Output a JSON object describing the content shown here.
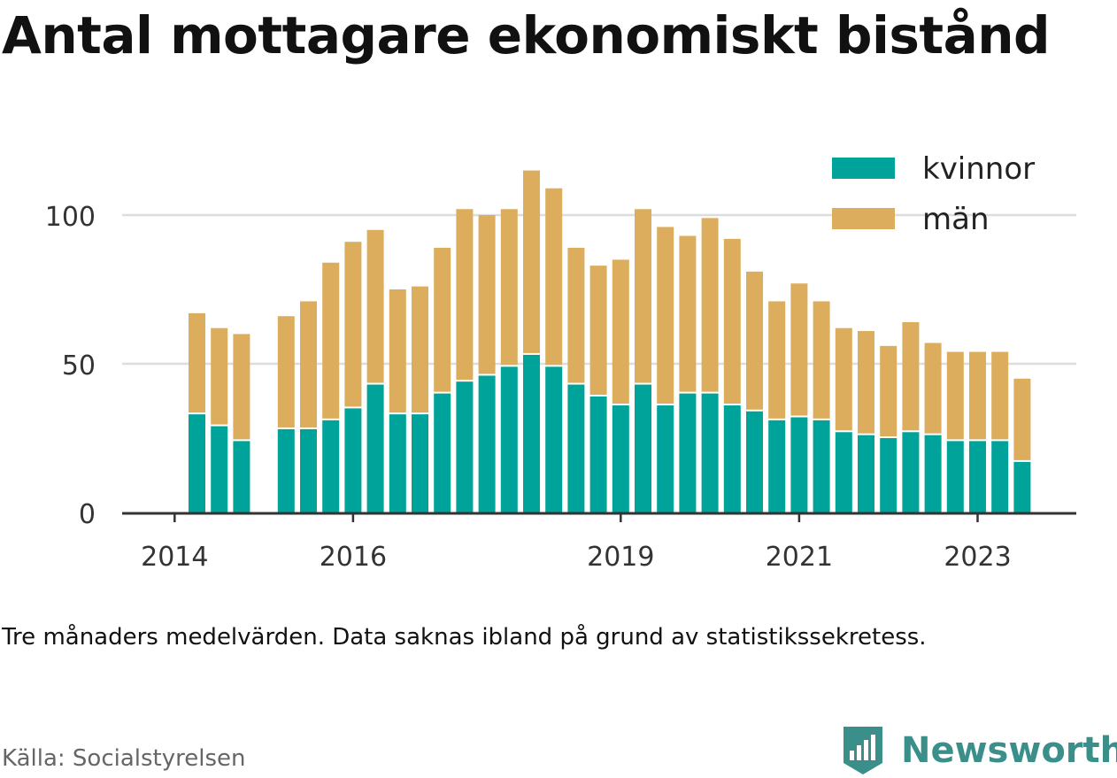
{
  "title": "Antal mottagare ekonomiskt bistånd",
  "note": "Tre månaders medelvärden. Data saknas ibland på grund av statistikssekretess.",
  "source": "Källa: Socialstyrelsen",
  "brand": {
    "name": "Newsworthy",
    "icon": "newsworthy-logo-icon",
    "color": "#3b8f8a"
  },
  "colors": {
    "kvinnor": "#00a39a",
    "man": "#dbad5c",
    "grid": "#dddddd",
    "axis": "#333333"
  },
  "chart_data": {
    "type": "bar",
    "stacked": true,
    "x": [
      "2014-05",
      "2014-08",
      "2014-11",
      "2015-02",
      "2015-05",
      "2015-08",
      "2015-11",
      "2016-02",
      "2016-05",
      "2016-08",
      "2016-11",
      "2017-02",
      "2017-05",
      "2017-08",
      "2017-11",
      "2018-02",
      "2018-05",
      "2018-08",
      "2018-11",
      "2019-02",
      "2019-05",
      "2019-08",
      "2019-11",
      "2020-02",
      "2020-05",
      "2020-08",
      "2020-11",
      "2021-02",
      "2021-05",
      "2021-08",
      "2021-11",
      "2022-02",
      "2022-05",
      "2022-08",
      "2022-11",
      "2023-02",
      "2023-05",
      "2023-08"
    ],
    "series": [
      {
        "name": "kvinnor",
        "values": [
          33,
          29,
          24,
          null,
          28,
          28,
          31,
          35,
          43,
          33,
          33,
          40,
          44,
          46,
          49,
          53,
          49,
          43,
          39,
          36,
          43,
          36,
          40,
          40,
          36,
          34,
          31,
          32,
          31,
          27,
          26,
          25,
          27,
          26,
          24,
          24,
          24,
          17
        ]
      },
      {
        "name": "män",
        "values": [
          34,
          33,
          36,
          null,
          38,
          43,
          53,
          56,
          52,
          42,
          43,
          49,
          58,
          54,
          53,
          62,
          60,
          46,
          44,
          49,
          59,
          60,
          53,
          59,
          56,
          47,
          40,
          45,
          40,
          35,
          35,
          31,
          37,
          31,
          30,
          30,
          30,
          28
        ]
      }
    ],
    "xticks": [
      {
        "label": "2014",
        "at": "2014-02"
      },
      {
        "label": "2016",
        "at": "2016-02"
      },
      {
        "label": "2019",
        "at": "2019-02"
      },
      {
        "label": "2021",
        "at": "2021-02"
      },
      {
        "label": "2023",
        "at": "2023-02"
      }
    ],
    "yticks": [
      0,
      50,
      100
    ],
    "ylim": [
      0,
      125
    ],
    "grid": true,
    "legend": "top-right"
  }
}
